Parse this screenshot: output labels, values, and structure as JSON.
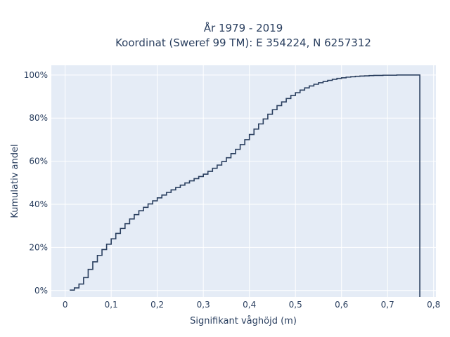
{
  "chart_data": {
    "type": "line",
    "line_shape": "step",
    "title": "År 1979 - 2019",
    "subtitle": "Koordinat (Sweref 99 TM): E 354224, N 6257312",
    "xlabel": "Signifikant våghöjd (m)",
    "ylabel": "Kumulativ andel",
    "xlim": [
      -0.03,
      0.805
    ],
    "ylim": [
      -0.03,
      1.045
    ],
    "x_ticks": [
      {
        "value": 0,
        "label": "0"
      },
      {
        "value": 0.1,
        "label": "0,1"
      },
      {
        "value": 0.2,
        "label": "0,2"
      },
      {
        "value": 0.3,
        "label": "0,3"
      },
      {
        "value": 0.4,
        "label": "0,4"
      },
      {
        "value": 0.5,
        "label": "0,5"
      },
      {
        "value": 0.6,
        "label": "0,6"
      },
      {
        "value": 0.7,
        "label": "0,7"
      },
      {
        "value": 0.8,
        "label": "0,8"
      }
    ],
    "y_ticks": [
      {
        "value": 0,
        "label": "0%"
      },
      {
        "value": 0.2,
        "label": "20%"
      },
      {
        "value": 0.4,
        "label": "40%"
      },
      {
        "value": 0.6,
        "label": "60%"
      },
      {
        "value": 0.8,
        "label": "80%"
      },
      {
        "value": 1.0,
        "label": "100%"
      }
    ],
    "grid": true,
    "colors": {
      "background": "#e5ecf6",
      "grid": "#ffffff",
      "line": "#2a3f5f"
    },
    "series": [
      {
        "x": [
          0.01,
          0.02,
          0.03,
          0.04,
          0.05,
          0.06,
          0.07,
          0.08,
          0.09,
          0.1,
          0.11,
          0.12,
          0.13,
          0.14,
          0.15,
          0.16,
          0.17,
          0.18,
          0.19,
          0.2,
          0.21,
          0.22,
          0.23,
          0.24,
          0.25,
          0.26,
          0.27,
          0.28,
          0.29,
          0.3,
          0.31,
          0.32,
          0.33,
          0.34,
          0.35,
          0.36,
          0.37,
          0.38,
          0.39,
          0.4,
          0.41,
          0.42,
          0.43,
          0.44,
          0.45,
          0.46,
          0.47,
          0.48,
          0.49,
          0.5,
          0.51,
          0.52,
          0.53,
          0.54,
          0.55,
          0.56,
          0.57,
          0.58,
          0.59,
          0.6,
          0.61,
          0.62,
          0.63,
          0.64,
          0.65,
          0.66,
          0.67,
          0.68,
          0.69,
          0.7,
          0.71,
          0.72,
          0.73,
          0.74,
          0.75,
          0.76,
          0.77
        ],
        "y": [
          0.002,
          0.012,
          0.03,
          0.06,
          0.098,
          0.133,
          0.163,
          0.19,
          0.215,
          0.24,
          0.265,
          0.288,
          0.31,
          0.332,
          0.352,
          0.37,
          0.386,
          0.402,
          0.416,
          0.43,
          0.443,
          0.455,
          0.467,
          0.478,
          0.489,
          0.499,
          0.509,
          0.519,
          0.529,
          0.54,
          0.553,
          0.567,
          0.582,
          0.598,
          0.616,
          0.635,
          0.655,
          0.677,
          0.7,
          0.724,
          0.749,
          0.773,
          0.796,
          0.818,
          0.839,
          0.858,
          0.875,
          0.891,
          0.905,
          0.918,
          0.93,
          0.94,
          0.949,
          0.957,
          0.964,
          0.97,
          0.975,
          0.98,
          0.984,
          0.987,
          0.99,
          0.992,
          0.994,
          0.995,
          0.996,
          0.997,
          0.998,
          0.998,
          0.999,
          0.999,
          0.999,
          1.0,
          1.0,
          1.0,
          1.0,
          1.0,
          1.0
        ],
        "drop_to_zero_at": 0.77
      }
    ]
  }
}
